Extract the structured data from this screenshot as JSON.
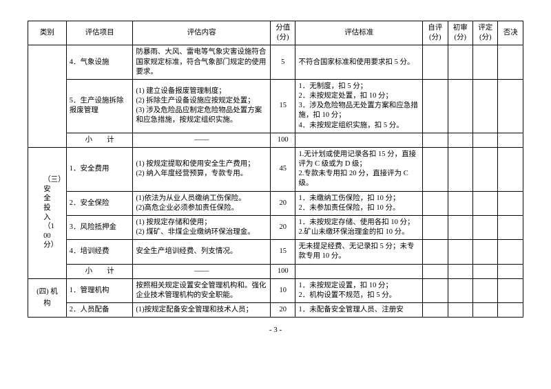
{
  "header": {
    "cat": "类别",
    "item": "评估项目",
    "content": "评估内容",
    "score": "分值 (分)",
    "std": "评估标准",
    "self": "自评 (分)",
    "first": "初审 (分)",
    "final": "评定 (分)",
    "veto": "否决"
  },
  "rows": [
    {
      "item": "4．气象设施",
      "content": "防暴雨、大风、雷电等气象灾害设施符合国家规定标准，符合气象部门规定的使用要求。",
      "score": "5",
      "std": "不符合国家标准和使用要求扣 5 分。"
    },
    {
      "item": "5．生产设施拆除报废管理",
      "content": "(1) 建立设备报废管理制度；\n(2) 拆除生产设备设施应按规定处置；\n(3) 涉及危险品应制定危险物品处置方案和应急措施，按规定组织实施。",
      "score": "15",
      "std": "1．无制度，扣 5 分；\n2．未按规定处置，扣 10 分；\n3．涉及危险物品无处置方案和应急措施，扣 10 分；\n4．未按规定组织实施，扣 5 分。"
    },
    {
      "item": "小　　计",
      "content": "——",
      "score": "100",
      "std": ""
    },
    {
      "cat": "（三）安全投入（100 分）",
      "item": "1．安全费用",
      "content": "(1) 按规定提取和使用安全生产费用；\n(2) 纳入年度经营预算，专款专用。",
      "score": "45",
      "std": "1.无计划或使用记录各扣 15 分，直接评为 C 级或为 D 级；\n2.专款未专用扣 20 分，直接评为 C 级。"
    },
    {
      "item": "2．安全保险",
      "content": "(1)依法为从业人员缴纳工伤保险。\n(2)高危企业必须参加责任保险。",
      "score": "20",
      "std": "1．未缴纳工伤保险，扣 10 分；\n2．未参加责任保险，扣 10 分。"
    },
    {
      "item": "3．风险抵押金",
      "content": "(1) 按规定存储和使用；\n(2) 煤矿、非煤企业缴纳环保治理金。",
      "score": "20",
      "std": "1．未按规定存储、使用各扣 10 分；\n2.矿山未缴环保治理金的扣 10 分。"
    },
    {
      "item": "4．培训经费",
      "content": "安全生产培训经费、列支情况。",
      "score": "15",
      "std": "无未提足经费、无记录扣 5 分；未专款专用 10 分。"
    },
    {
      "item": "小　　计",
      "content": "——",
      "score": "100",
      "std": ""
    },
    {
      "cat": "(四) 机　构",
      "item": "1．管理机构",
      "content": "按照相关规定设置安全管理机构和。强化企业技术管理机构的安全职能。",
      "score": "10",
      "std": "1．未按规定设置，扣 10 分；\n2．机构设置不规范，扣 5 分。"
    },
    {
      "item": "2．人员配备",
      "content": "(1)按规定配备安全管理和技术人员；",
      "score": "20",
      "std": "1．未配备安全管理人员、注册安"
    }
  ],
  "page": "- 3 -"
}
